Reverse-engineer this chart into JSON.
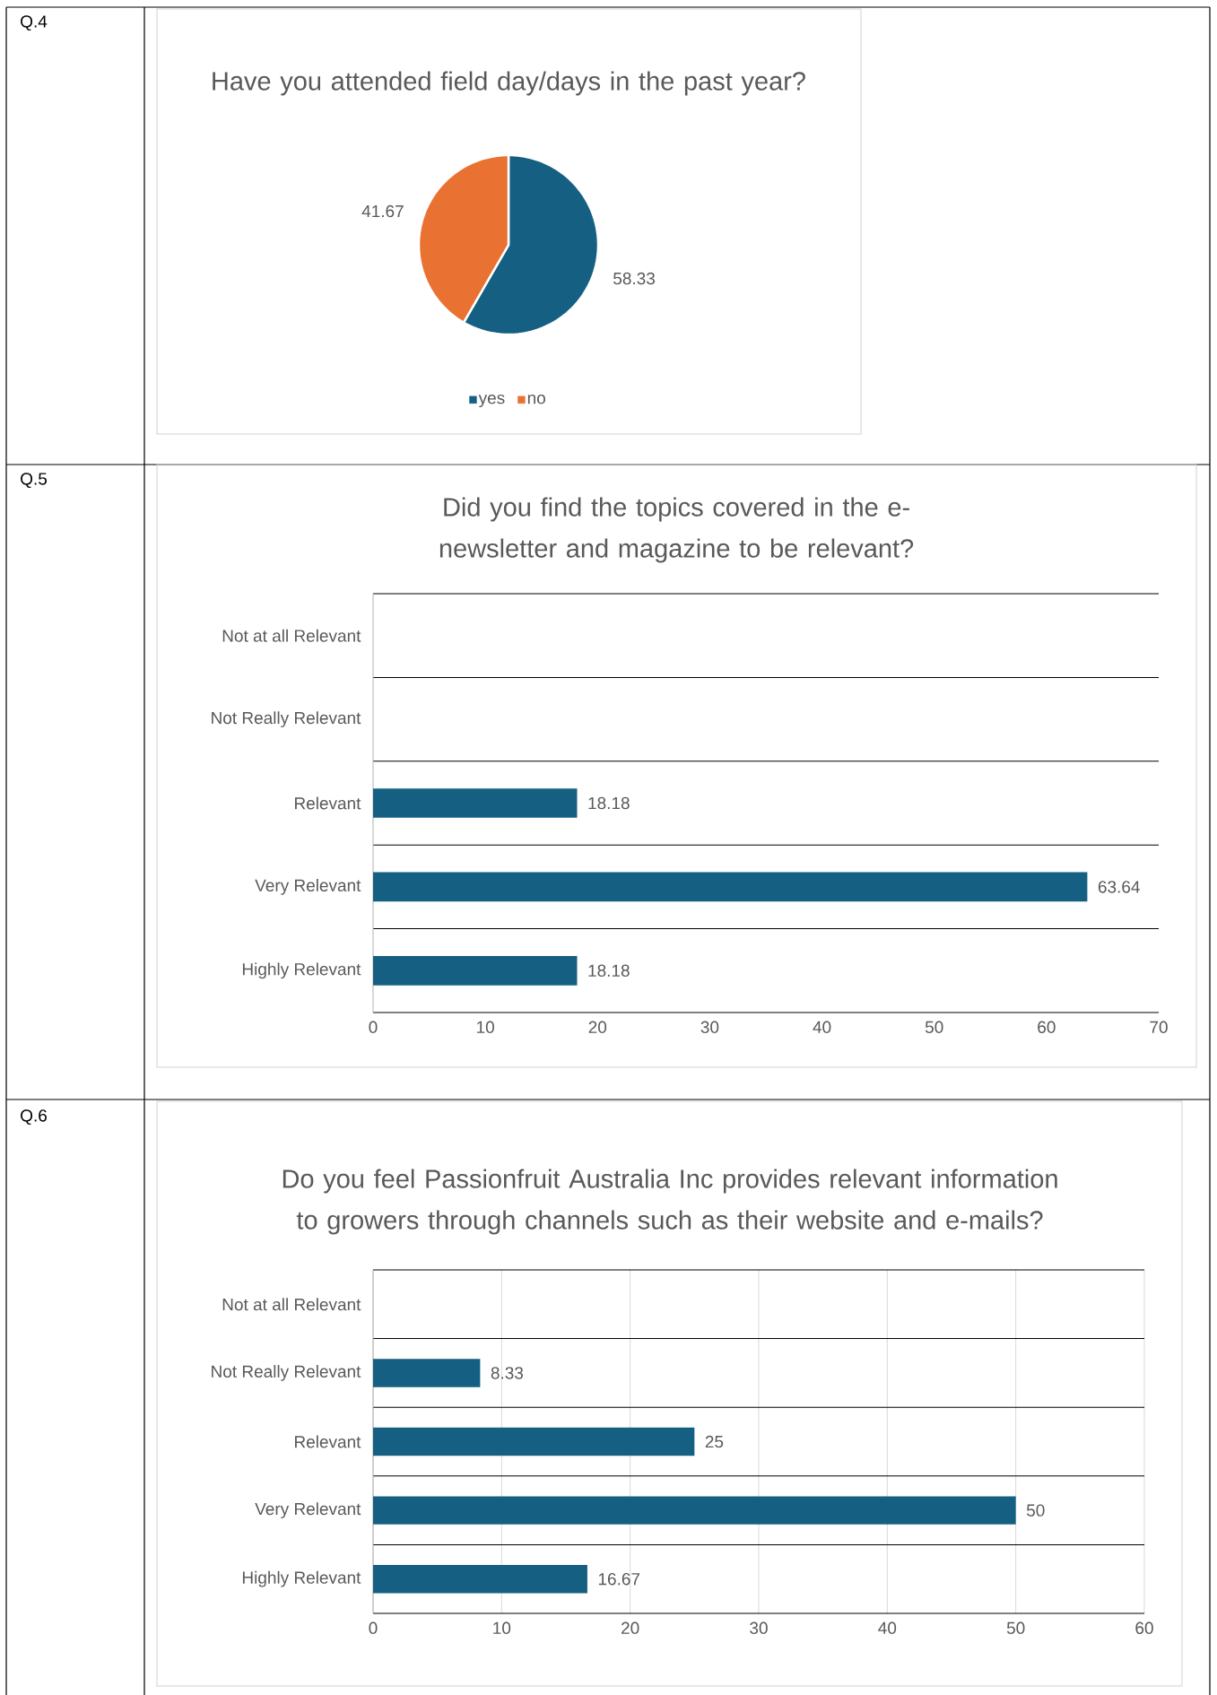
{
  "chart_data": [
    {
      "type": "pie",
      "title": "Have you attended field day/days in the past year?",
      "annotations": [
        "Q.4"
      ],
      "categories": [
        "yes",
        "no"
      ],
      "values": [
        58.33,
        41.67
      ],
      "colors": [
        "#156082",
        "#e97132"
      ],
      "data_labels": true,
      "legend": "bottom"
    },
    {
      "type": "bar",
      "orientation": "horizontal",
      "title": "Did you find the topics covered in the e-newsletter and magazine to be relevant?",
      "annotations": [
        "Q.5"
      ],
      "categories": [
        "Not at all Relevant",
        "Not Really Relevant",
        "Relevant",
        "Very Relevant",
        "Highly Relevant"
      ],
      "values": [
        null,
        null,
        18.18,
        63.64,
        18.18
      ],
      "color": "#156082",
      "xlim": [
        0,
        70
      ],
      "xticks": [
        0,
        10,
        20,
        30,
        40,
        50,
        60,
        70
      ],
      "grid": "y",
      "data_labels": true
    },
    {
      "type": "bar",
      "orientation": "horizontal",
      "title": "Do you feel Passionfruit Australia Inc provides relevant information to growers through channels such as their website and e-mails?",
      "annotations": [
        "Q.6"
      ],
      "categories": [
        "Not at all Relevant",
        "Not Really Relevant",
        "Relevant",
        "Very Relevant",
        "Highly Relevant"
      ],
      "values": [
        null,
        8.33,
        25,
        50,
        16.67
      ],
      "color": "#156082",
      "xlim": [
        0,
        60
      ],
      "xticks": [
        0,
        10,
        20,
        30,
        40,
        50,
        60
      ],
      "grid": true,
      "data_labels": true
    }
  ]
}
